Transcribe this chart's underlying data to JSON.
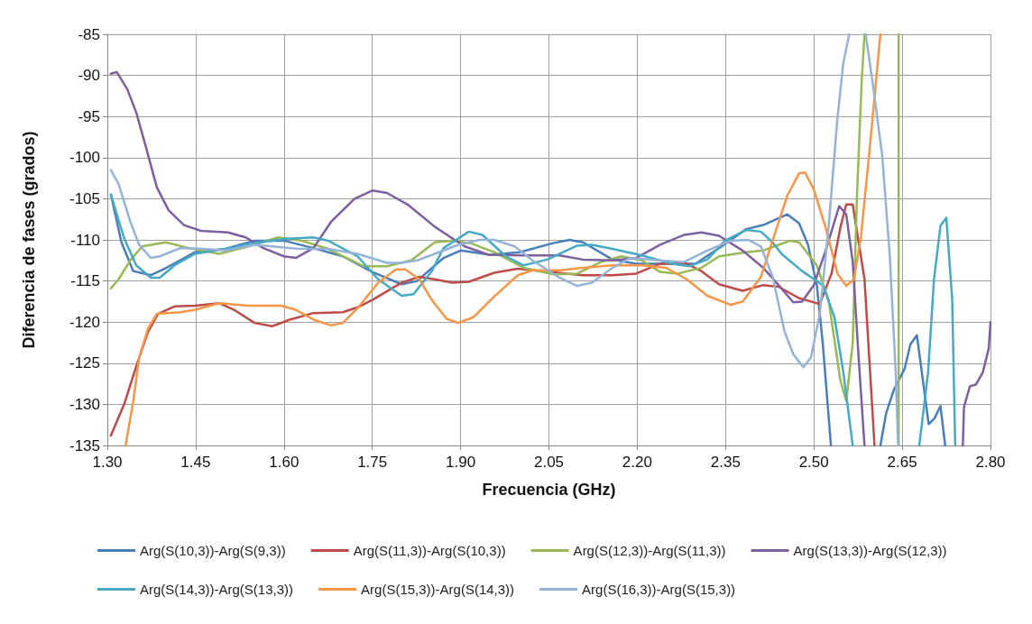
{
  "chart_data": {
    "type": "line",
    "xlabel": "Frecuencia (GHz)",
    "ylabel": "Diferencia de fases (grados)",
    "xlim": [
      1.3,
      2.8
    ],
    "ylim": [
      -135,
      -85
    ],
    "xticks": [
      {
        "value": 1.3,
        "label": "1.30"
      },
      {
        "value": 1.45,
        "label": "1.45"
      },
      {
        "value": 1.6,
        "label": "1.60"
      },
      {
        "value": 1.75,
        "label": "1.75"
      },
      {
        "value": 1.9,
        "label": "1.90"
      },
      {
        "value": 2.05,
        "label": "2.05"
      },
      {
        "value": 2.2,
        "label": "2.20"
      },
      {
        "value": 2.35,
        "label": "2.35"
      },
      {
        "value": 2.5,
        "label": "2.50"
      },
      {
        "value": 2.65,
        "label": "2.65"
      },
      {
        "value": 2.8,
        "label": "2.80"
      }
    ],
    "yticks": [
      -85,
      -90,
      -95,
      -100,
      -105,
      -110,
      -115,
      -120,
      -125,
      -130,
      -135
    ],
    "grid": true,
    "legend": "bottom",
    "marker": "none",
    "series": [
      {
        "name": "Arg(S(10,3))-Arg(S(9,3))",
        "color": "#4a7ebb",
        "x": [
          1.306,
          1.324,
          1.344,
          1.374,
          1.4,
          1.449,
          1.5,
          1.55,
          1.6,
          1.65,
          1.7,
          1.75,
          1.8,
          1.826,
          1.871,
          1.9,
          1.95,
          2.0,
          2.057,
          2.085,
          2.108,
          2.158,
          2.198,
          2.259,
          2.299,
          2.339,
          2.385,
          2.414,
          2.455,
          2.475,
          2.49,
          2.505,
          2.515,
          2.529,
          2.57,
          2.613,
          2.623,
          2.636,
          2.654,
          2.664,
          2.675,
          2.695,
          2.705,
          2.715,
          2.723
        ],
        "values": [
          -104.5,
          -110.3,
          -113.8,
          -114.3,
          -113.4,
          -111.5,
          -111.1,
          -110.1,
          -110.1,
          -111,
          -112,
          -113.9,
          -115.4,
          -115,
          -112.2,
          -111.3,
          -111.8,
          -111.5,
          -110.4,
          -110,
          -110.3,
          -112.4,
          -112.9,
          -112.9,
          -112.9,
          -111,
          -108.7,
          -108.2,
          -106.9,
          -108,
          -110.6,
          -115.5,
          -122.5,
          -135,
          null,
          -135,
          -131,
          -128.2,
          -125.7,
          -122.7,
          -121.6,
          -132.4,
          -131.7,
          -130.2,
          -135
        ]
      },
      {
        "name": "Arg(S(11,3))-Arg(S(10,3))",
        "color": "#be4b48",
        "x": [
          1.306,
          1.329,
          1.349,
          1.369,
          1.386,
          1.414,
          1.449,
          1.49,
          1.515,
          1.55,
          1.58,
          1.61,
          1.65,
          1.7,
          1.725,
          1.75,
          1.8,
          1.83,
          1.856,
          1.886,
          1.914,
          1.957,
          1.997,
          2.05,
          2.108,
          2.158,
          2.198,
          2.239,
          2.284,
          2.309,
          2.339,
          2.379,
          2.414,
          2.44,
          2.475,
          2.51,
          2.53,
          2.545,
          2.555,
          2.566,
          2.586,
          2.603
        ],
        "values": [
          -133.8,
          -129.9,
          -125.4,
          -121.2,
          -119,
          -118.1,
          -118,
          -117.7,
          -118.5,
          -120.1,
          -120.5,
          -119.7,
          -118.9,
          -118.8,
          -118.2,
          -117.3,
          -115.2,
          -114.5,
          -114.8,
          -115.2,
          -115.1,
          -114,
          -113.5,
          -113.9,
          -114.3,
          -114.3,
          -114.1,
          -112.9,
          -112.9,
          -113.8,
          -115.4,
          -116.2,
          -115.5,
          -115.7,
          -117.1,
          -117.8,
          -114.1,
          -108.5,
          -105.7,
          -105.7,
          -114.8,
          -135
        ]
      },
      {
        "name": "Arg(S(12,3))-Arg(S(11,3))",
        "color": "#98b954",
        "x": [
          1.306,
          1.319,
          1.339,
          1.359,
          1.399,
          1.439,
          1.49,
          1.54,
          1.59,
          1.63,
          1.675,
          1.735,
          1.775,
          1.816,
          1.856,
          1.886,
          1.917,
          1.957,
          2.007,
          2.058,
          2.098,
          2.138,
          2.173,
          2.208,
          2.239,
          2.269,
          2.309,
          2.339,
          2.385,
          2.414,
          2.44,
          2.46,
          2.475,
          2.505,
          2.525,
          2.545,
          2.555,
          2.566,
          2.573,
          2.581,
          2.586,
          2.615,
          2.644,
          2.644
        ],
        "values": [
          -115.9,
          -114.8,
          -112.5,
          -110.8,
          -110.3,
          -111,
          -111.7,
          -110.8,
          -109.7,
          -110.1,
          -111.1,
          -113.2,
          -113.2,
          -112.5,
          -110.3,
          -110.1,
          -110.4,
          -111.5,
          -113.4,
          -114.2,
          -114.1,
          -112.7,
          -112,
          -112.5,
          -113.9,
          -114.1,
          -113.4,
          -112,
          -111.5,
          -111.3,
          -110.6,
          -110.1,
          -110.3,
          -113.1,
          -117.3,
          -127.1,
          -129.6,
          -122.5,
          -105,
          -91,
          -85,
          null,
          -85,
          -135
        ]
      },
      {
        "name": "Arg(S(13,3))-Arg(S(12,3))",
        "color": "#7d60a0",
        "x": [
          1.306,
          1.316,
          1.334,
          1.349,
          1.364,
          1.384,
          1.404,
          1.43,
          1.459,
          1.505,
          1.535,
          1.565,
          1.6,
          1.62,
          1.65,
          1.68,
          1.72,
          1.75,
          1.775,
          1.81,
          1.856,
          1.907,
          1.947,
          2.007,
          2.068,
          2.108,
          2.158,
          2.198,
          2.239,
          2.279,
          2.309,
          2.339,
          2.379,
          2.414,
          2.44,
          2.465,
          2.48,
          2.5,
          2.52,
          2.543,
          2.555,
          2.566,
          2.576,
          2.586,
          2.67,
          2.753,
          2.755,
          2.765,
          2.775,
          2.787,
          2.797,
          2.8
        ],
        "values": [
          -89.8,
          -89.6,
          -91.7,
          -94.5,
          -98.3,
          -103.6,
          -106.4,
          -108.2,
          -108.9,
          -109.1,
          -109.7,
          -111,
          -112,
          -112.2,
          -111,
          -107.8,
          -105,
          -104,
          -104.3,
          -105.7,
          -108.4,
          -110.8,
          -111.8,
          -111.9,
          -111.9,
          -112.4,
          -112.5,
          -112.2,
          -110.6,
          -109.4,
          -109.1,
          -109.5,
          -111.3,
          -113.4,
          -115.5,
          -117.6,
          -117.5,
          -115.5,
          -111.3,
          -105.9,
          -106.9,
          -112.7,
          -124.3,
          -135,
          null,
          -135,
          -130.3,
          -127.8,
          -127.6,
          -126.1,
          -123.2,
          -120
        ]
      },
      {
        "name": "Arg(S(14,3))-Arg(S(13,3))",
        "color": "#46aac5",
        "x": [
          1.306,
          1.329,
          1.349,
          1.374,
          1.389,
          1.414,
          1.449,
          1.5,
          1.55,
          1.6,
          1.65,
          1.675,
          1.725,
          1.76,
          1.8,
          1.82,
          1.851,
          1.871,
          1.886,
          1.914,
          1.937,
          1.977,
          2.007,
          2.047,
          2.098,
          2.123,
          2.158,
          2.208,
          2.259,
          2.289,
          2.319,
          2.349,
          2.385,
          2.41,
          2.43,
          2.445,
          2.48,
          2.515,
          2.535,
          2.55,
          2.566,
          2.62,
          2.679,
          2.694,
          2.704,
          2.715,
          2.725,
          2.735,
          2.74
        ],
        "values": [
          -104.5,
          -109.9,
          -113.1,
          -114.6,
          -114.6,
          -113.1,
          -111.7,
          -111.1,
          -110.4,
          -109.9,
          -109.7,
          -110.1,
          -112,
          -114.8,
          -116.8,
          -116.6,
          -113.8,
          -111,
          -110.3,
          -109,
          -109.4,
          -112,
          -113.1,
          -112.4,
          -110.7,
          -110.6,
          -111.1,
          -111.9,
          -112.9,
          -113.2,
          -112.4,
          -110.1,
          -108.8,
          -109,
          -110.3,
          -111.7,
          -113.8,
          -115.5,
          -119.4,
          -126.1,
          -135,
          null,
          -135,
          -126.1,
          -114.8,
          -108.3,
          -107.3,
          -117.3,
          -135
        ]
      },
      {
        "name": "Arg(S(15,3))-Arg(S(14,3))",
        "color": "#f79646",
        "x": [
          1.331,
          1.344,
          1.354,
          1.369,
          1.384,
          1.424,
          1.449,
          1.49,
          1.54,
          1.595,
          1.62,
          1.65,
          1.68,
          1.7,
          1.725,
          1.76,
          1.79,
          1.806,
          1.83,
          1.851,
          1.876,
          1.896,
          1.922,
          1.957,
          1.997,
          2.022,
          2.068,
          2.108,
          2.158,
          2.208,
          2.249,
          2.284,
          2.319,
          2.359,
          2.379,
          2.41,
          2.434,
          2.455,
          2.475,
          2.485,
          2.5,
          2.52,
          2.54,
          2.555,
          2.568,
          2.58,
          2.596,
          2.606,
          2.613
        ],
        "values": [
          -135,
          -129.6,
          -124.3,
          -120.8,
          -119,
          -118.8,
          -118.5,
          -117.7,
          -118,
          -118,
          -118.5,
          -119.7,
          -120.4,
          -120.1,
          -118.3,
          -115.2,
          -113.6,
          -113.6,
          -114.8,
          -117.3,
          -119.6,
          -120.1,
          -119.4,
          -116.9,
          -114.3,
          -113.7,
          -113.7,
          -113.4,
          -113.1,
          -113.1,
          -113.4,
          -114.8,
          -116.8,
          -117.9,
          -117.5,
          -114.5,
          -109.2,
          -104.6,
          -101.9,
          -101.8,
          -103.9,
          -108.5,
          -114.1,
          -115.6,
          -114.8,
          -109.6,
          -98,
          -90.3,
          -85
        ]
      },
      {
        "name": "Arg(S(16,3))-Arg(S(15,3))",
        "color": "#95b3d7",
        "x": [
          1.306,
          1.319,
          1.339,
          1.354,
          1.374,
          1.389,
          1.424,
          1.464,
          1.5,
          1.55,
          1.58,
          1.625,
          1.675,
          1.725,
          1.775,
          1.8,
          1.826,
          1.856,
          1.896,
          1.932,
          1.957,
          1.992,
          2.022,
          2.068,
          2.098,
          2.123,
          2.158,
          2.188,
          2.239,
          2.279,
          2.319,
          2.359,
          2.389,
          2.41,
          2.43,
          2.45,
          2.465,
          2.482,
          2.495,
          2.51,
          2.525,
          2.54,
          2.55,
          2.56,
          2.574,
          2.588,
          2.6,
          2.616,
          2.629,
          2.639,
          2.643
        ],
        "values": [
          -101.5,
          -103.2,
          -107.8,
          -110.6,
          -112.2,
          -112,
          -111,
          -111.1,
          -111.3,
          -110.6,
          -110.8,
          -111.1,
          -111.1,
          -111.7,
          -112.8,
          -112.8,
          -112.5,
          -111.7,
          -110.6,
          -110,
          -110,
          -110.8,
          -112.5,
          -114.6,
          -115.6,
          -115.2,
          -113.4,
          -112.2,
          -112.5,
          -112.7,
          -111.3,
          -110.1,
          -110,
          -110.8,
          -114.5,
          -121.1,
          -123.9,
          -125.5,
          -124.3,
          -119,
          -108.5,
          -95.2,
          -88.5,
          -85,
          null,
          -85,
          -91,
          -99.7,
          -112,
          -126.1,
          -135
        ]
      }
    ]
  }
}
